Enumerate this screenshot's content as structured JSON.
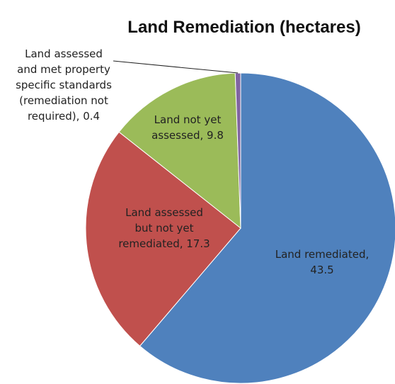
{
  "chart_data": {
    "type": "pie",
    "title": "Land Remediation (hectares)",
    "values": [
      43.5,
      17.3,
      9.8,
      0.4
    ],
    "value_labels": [
      "Land remediated, 43.5",
      "Land assessed but not yet remediated, 17.3",
      "Land not yet assessed, 9.8",
      "Land assessed and met property specific standards (remediation not required), 0.4"
    ],
    "colors": [
      "#4f81bd",
      "#c0504d",
      "#9bbb59",
      "#8064a2"
    ]
  }
}
